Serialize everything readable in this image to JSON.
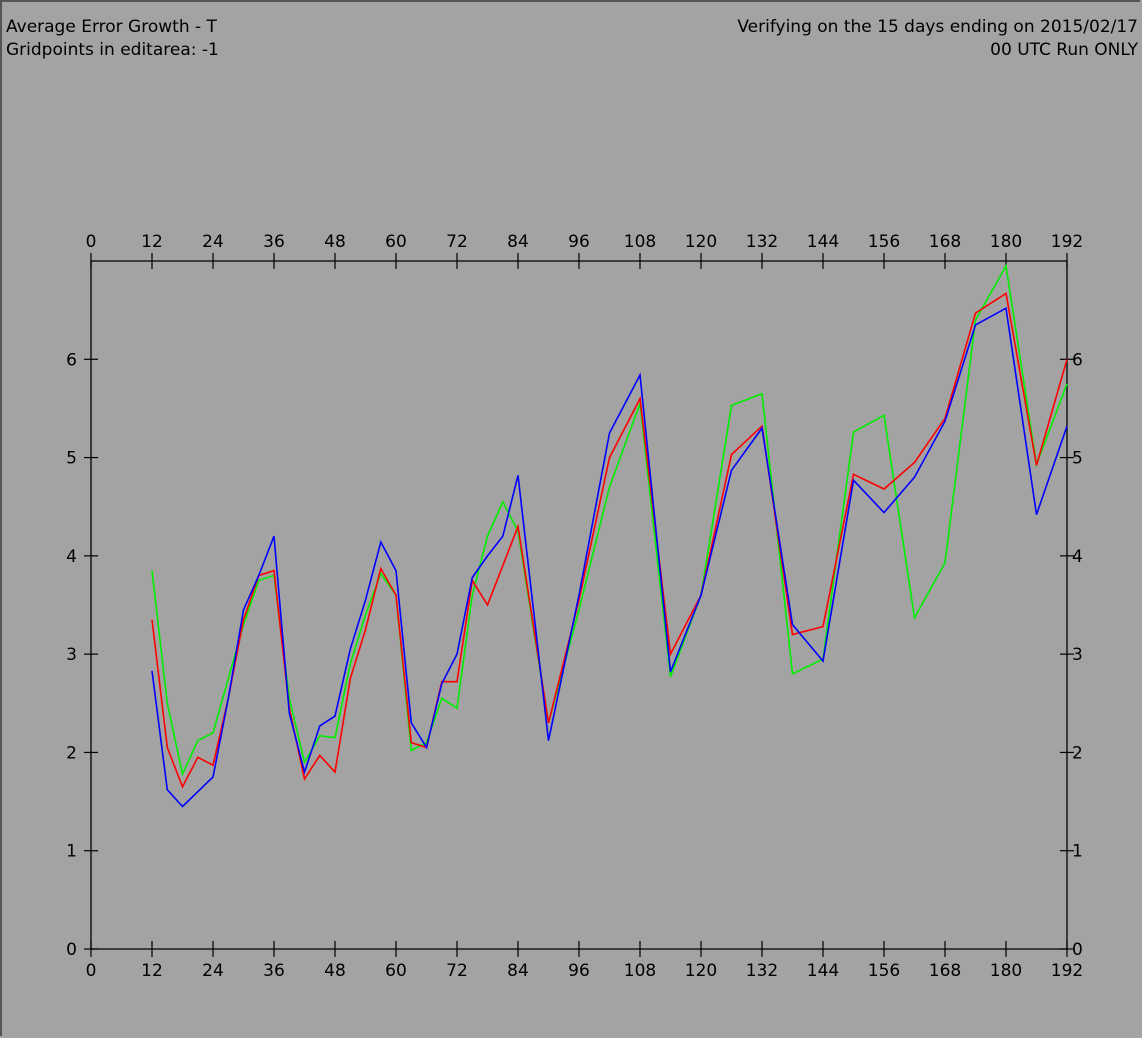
{
  "header": {
    "title": "Average Error Growth - T",
    "subtitle": "Gridpoints in editarea: -1",
    "verify_text": "Verifying on the 15 days ending on 2015/02/17",
    "run_text": "00 UTC Run ONLY"
  },
  "chart_data": {
    "type": "line",
    "title": "Average Error Growth - T",
    "xlim": [
      0,
      192
    ],
    "ylim": [
      0,
      7
    ],
    "x_ticks": [
      0,
      12,
      24,
      36,
      48,
      60,
      72,
      84,
      96,
      108,
      120,
      132,
      144,
      156,
      168,
      180,
      192
    ],
    "y_ticks": [
      0,
      1,
      2,
      3,
      4,
      5,
      6
    ],
    "grid": false,
    "series": [
      {
        "color": "#00ee00",
        "x": [
          12,
          15,
          18,
          21,
          24,
          27,
          30,
          33,
          36,
          39,
          42,
          45,
          48,
          51,
          54,
          57,
          60,
          63,
          66,
          69,
          72,
          75,
          78,
          81,
          84,
          90,
          96,
          102,
          108,
          114,
          120,
          126,
          132,
          138,
          144,
          150,
          156,
          162,
          168,
          174,
          180,
          186,
          192
        ],
        "values": [
          3.85,
          2.5,
          1.78,
          2.12,
          2.2,
          2.75,
          3.3,
          3.75,
          3.8,
          2.55,
          1.9,
          2.17,
          2.15,
          2.9,
          3.4,
          3.82,
          3.6,
          2.02,
          2.1,
          2.55,
          2.45,
          3.6,
          4.2,
          4.55,
          4.25,
          2.3,
          3.45,
          4.7,
          5.55,
          2.77,
          3.6,
          5.53,
          5.65,
          2.8,
          2.95,
          5.26,
          5.43,
          3.37,
          3.93,
          6.4,
          6.95,
          4.93,
          5.75
        ]
      },
      {
        "color": "#ff0000",
        "x": [
          12,
          15,
          18,
          21,
          24,
          27,
          30,
          33,
          36,
          39,
          42,
          45,
          48,
          51,
          54,
          57,
          60,
          63,
          66,
          69,
          72,
          75,
          78,
          81,
          84,
          90,
          96,
          102,
          108,
          114,
          120,
          126,
          132,
          138,
          144,
          150,
          156,
          162,
          168,
          174,
          180,
          186,
          192
        ],
        "values": [
          3.35,
          2.05,
          1.65,
          1.95,
          1.87,
          2.55,
          3.35,
          3.8,
          3.85,
          2.45,
          1.73,
          1.97,
          1.8,
          2.75,
          3.25,
          3.87,
          3.6,
          2.1,
          2.05,
          2.72,
          2.72,
          3.75,
          3.5,
          3.9,
          4.3,
          2.3,
          3.55,
          5.0,
          5.6,
          3.0,
          3.6,
          5.03,
          5.32,
          3.2,
          3.28,
          4.83,
          4.68,
          4.95,
          5.4,
          6.47,
          6.67,
          4.92,
          6.0
        ]
      },
      {
        "color": "#0000ff",
        "x": [
          12,
          15,
          18,
          21,
          24,
          27,
          30,
          33,
          36,
          39,
          42,
          45,
          48,
          51,
          54,
          57,
          60,
          63,
          66,
          69,
          72,
          75,
          78,
          81,
          84,
          90,
          96,
          102,
          108,
          114,
          120,
          126,
          132,
          138,
          144,
          150,
          156,
          162,
          168,
          174,
          180,
          186,
          192
        ],
        "values": [
          2.83,
          1.62,
          1.45,
          1.6,
          1.75,
          2.55,
          3.45,
          3.8,
          4.2,
          2.4,
          1.8,
          2.27,
          2.37,
          3.05,
          3.55,
          4.14,
          3.85,
          2.3,
          2.05,
          2.7,
          3.0,
          3.78,
          4.0,
          4.2,
          4.82,
          2.12,
          3.6,
          5.25,
          5.84,
          2.82,
          3.6,
          4.87,
          5.3,
          3.3,
          2.93,
          4.77,
          4.44,
          4.8,
          5.37,
          6.35,
          6.52,
          4.42,
          5.32
        ]
      }
    ]
  }
}
